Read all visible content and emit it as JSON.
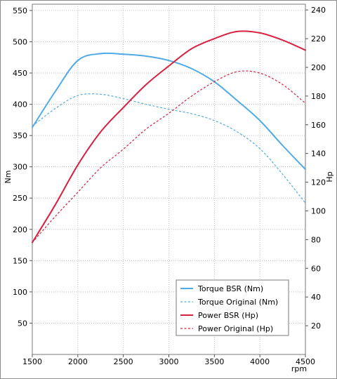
{
  "chart_data": {
    "type": "line",
    "xlabel": "rpm",
    "ylabel_left": "Nm",
    "ylabel_right": "Hp",
    "xlim": [
      1500,
      4500
    ],
    "ylim_left": [
      0,
      560
    ],
    "ylim_right": [
      0,
      244
    ],
    "x_ticks": [
      1500,
      2000,
      2500,
      3000,
      3500,
      4000,
      4500
    ],
    "y_ticks_left": [
      50,
      100,
      150,
      200,
      250,
      300,
      350,
      400,
      450,
      500,
      550
    ],
    "y_ticks_right": [
      20,
      40,
      60,
      80,
      100,
      120,
      140,
      160,
      180,
      200,
      220,
      240
    ],
    "grid": true,
    "legend_position": "bottom-right",
    "series": [
      {
        "name": "Torque BSR (Nm)",
        "axis": "left",
        "color": "#4faae8",
        "style": "solid",
        "x": [
          1500,
          1750,
          2000,
          2250,
          2500,
          2750,
          3000,
          3250,
          3500,
          3750,
          4000,
          4250,
          4500
        ],
        "values": [
          363,
          420,
          470,
          481,
          480,
          477,
          470,
          457,
          436,
          406,
          374,
          334,
          296
        ]
      },
      {
        "name": "Torque Original (Nm)",
        "axis": "left",
        "color": "#4faae8",
        "style": "dashed",
        "x": [
          1500,
          1750,
          2000,
          2250,
          2500,
          2750,
          3000,
          3250,
          3500,
          3750,
          4000,
          4250,
          4500
        ],
        "values": [
          365,
          393,
          414,
          416,
          409,
          400,
          392,
          385,
          374,
          356,
          329,
          288,
          242
        ]
      },
      {
        "name": "Power BSR (Hp)",
        "axis": "right",
        "color": "#d9203f",
        "style": "solid",
        "x": [
          1500,
          1750,
          2000,
          2250,
          2500,
          2750,
          3000,
          3250,
          3500,
          3750,
          4000,
          4250,
          4500
        ],
        "values": [
          78,
          104,
          132,
          155,
          172,
          188,
          201,
          213,
          220,
          225,
          224,
          219,
          212
        ]
      },
      {
        "name": "Power Original (Hp)",
        "axis": "right",
        "color": "#d9203f",
        "style": "dashed",
        "x": [
          1500,
          1750,
          2000,
          2250,
          2500,
          2750,
          3000,
          3250,
          3500,
          3750,
          4000,
          4250,
          4500
        ],
        "values": [
          78,
          96,
          113,
          130,
          143,
          157,
          168,
          180,
          190,
          197,
          196,
          188,
          175
        ]
      }
    ]
  }
}
